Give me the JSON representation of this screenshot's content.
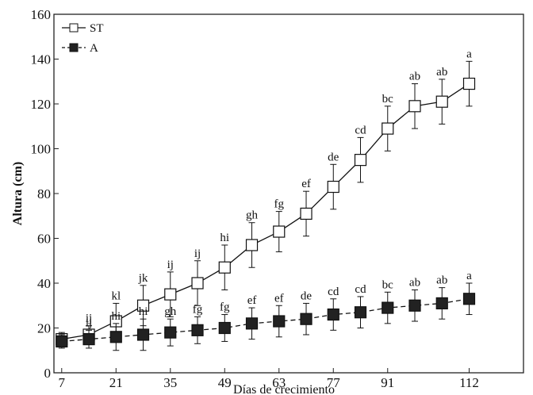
{
  "chart_data": {
    "type": "line",
    "xlabel": "Días de crecimiento",
    "ylabel": "Altura (cm)",
    "xlim": [
      5,
      126
    ],
    "ylim": [
      0,
      160
    ],
    "xticks": [
      7,
      21,
      35,
      49,
      63,
      77,
      91,
      112
    ],
    "yticks": [
      0,
      20,
      40,
      60,
      80,
      100,
      120,
      140,
      160
    ],
    "legend_position": "top-left",
    "grid": false,
    "series": [
      {
        "name": "ST",
        "marker": "open-square",
        "line": "solid",
        "x": [
          7,
          14,
          21,
          28,
          35,
          42,
          49,
          56,
          63,
          70,
          77,
          84,
          91,
          98,
          105,
          112
        ],
        "y": [
          15,
          17,
          23,
          30,
          35,
          40,
          47,
          57,
          63,
          71,
          83,
          95,
          109,
          119,
          121,
          129
        ],
        "err": [
          3,
          4,
          8,
          9,
          10,
          10,
          10,
          10,
          9,
          10,
          10,
          10,
          10,
          10,
          10,
          10
        ],
        "labels": [
          "",
          "ij",
          "kl",
          "jk",
          "ij",
          "ij",
          "hi",
          "gh",
          "fg",
          "ef",
          "de",
          "cd",
          "bc",
          "ab",
          "ab",
          "a"
        ]
      },
      {
        "name": "A",
        "marker": "filled-square",
        "line": "dashed",
        "x": [
          7,
          14,
          21,
          28,
          35,
          42,
          49,
          56,
          63,
          70,
          77,
          84,
          91,
          98,
          105,
          112
        ],
        "y": [
          14,
          15,
          16,
          17,
          18,
          19,
          20,
          22,
          23,
          24,
          26,
          27,
          29,
          30,
          31,
          33
        ],
        "err": [
          3,
          4,
          6,
          7,
          6,
          6,
          6,
          7,
          7,
          7,
          7,
          7,
          7,
          7,
          7,
          7
        ],
        "labels": [
          "",
          "ij",
          "hi",
          "hi",
          "gh",
          "fg",
          "fg",
          "ef",
          "ef",
          "de",
          "cd",
          "cd",
          "bc",
          "ab",
          "ab",
          "a"
        ]
      }
    ]
  }
}
